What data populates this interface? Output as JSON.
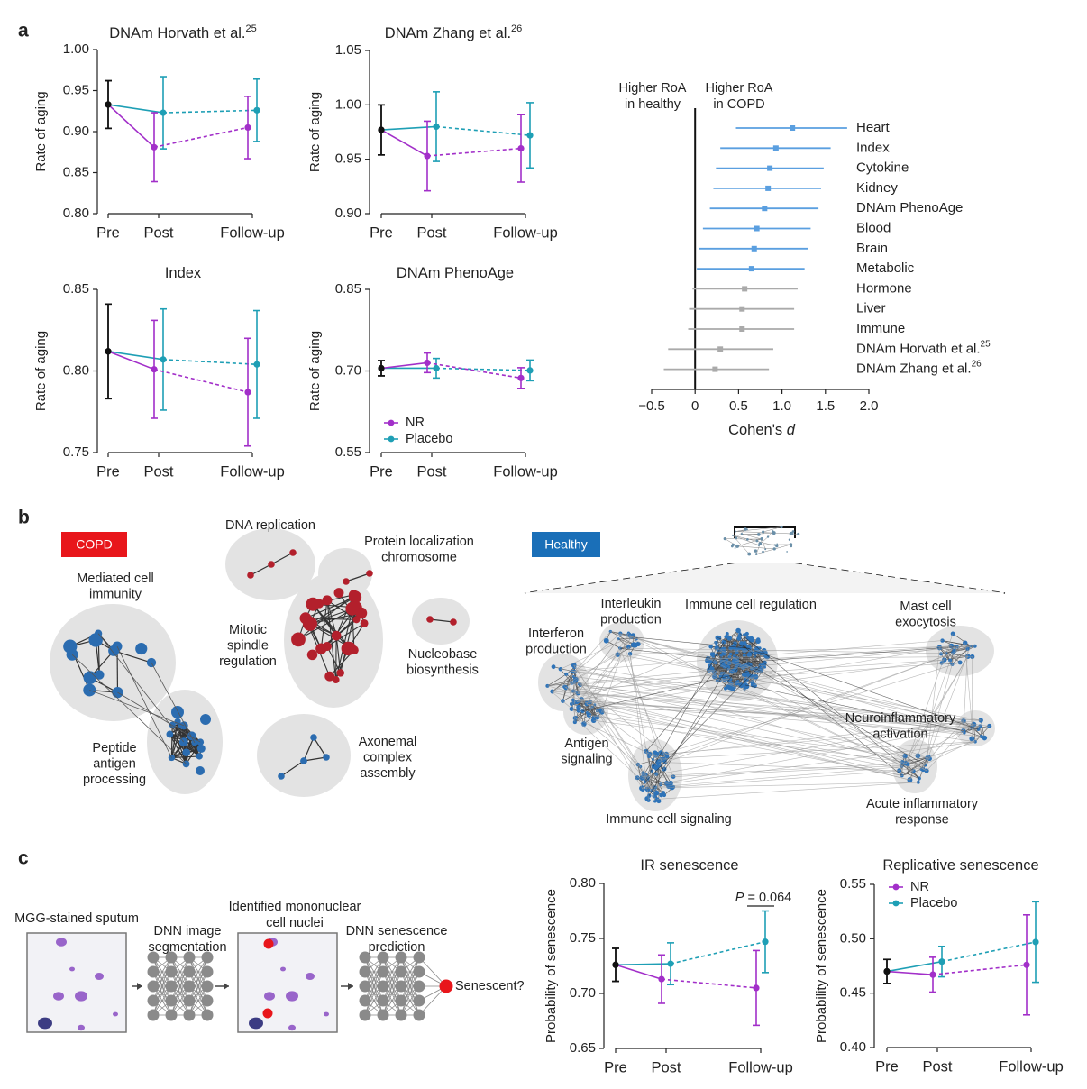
{
  "panel_labels": [
    "a",
    "b",
    "c"
  ],
  "chart_data": [
    {
      "type": "line",
      "title": "DNAm Horvath et al.",
      "title_superscript": "25",
      "ylabel": "Rate of aging",
      "categories": [
        "Pre",
        "Post",
        "Follow-up"
      ],
      "baseline_color": "#111111",
      "segment_styles": [
        "solid",
        "dashed"
      ],
      "ylim": [
        0.8,
        1.0
      ],
      "yticks": [
        {
          "value": 0.8,
          "label": "0.80"
        },
        {
          "value": 0.85,
          "label": "0.85"
        },
        {
          "value": 0.9,
          "label": "0.90"
        },
        {
          "value": 0.95,
          "label": "0.95"
        },
        {
          "value": 1.0,
          "label": "1.00"
        }
      ],
      "series": [
        {
          "color": "#a22fc9",
          "values": [
            0.933,
            0.881,
            0.905
          ],
          "errors": [
            0.029,
            0.042,
            0.038
          ]
        },
        {
          "color": "#1e9fb5",
          "values": [
            0.933,
            0.923,
            0.926
          ],
          "errors": [
            0.029,
            0.044,
            0.038
          ]
        }
      ]
    },
    {
      "type": "line",
      "title": "DNAm Zhang et al.",
      "title_superscript": "26",
      "ylabel": "Rate of aging",
      "categories": [
        "Pre",
        "Post",
        "Follow-up"
      ],
      "baseline_color": "#111111",
      "segment_styles": [
        "solid",
        "dashed"
      ],
      "ylim": [
        0.9,
        1.05
      ],
      "yticks": [
        {
          "value": 0.9,
          "label": "0.90"
        },
        {
          "value": 0.95,
          "label": "0.95"
        },
        {
          "value": 1.0,
          "label": "1.00"
        },
        {
          "value": 1.05,
          "label": "1.05"
        }
      ],
      "series": [
        {
          "color": "#a22fc9",
          "values": [
            0.977,
            0.953,
            0.96
          ],
          "errors": [
            0.023,
            0.032,
            0.031
          ]
        },
        {
          "color": "#1e9fb5",
          "values": [
            0.977,
            0.98,
            0.972
          ],
          "errors": [
            0.023,
            0.032,
            0.03
          ]
        }
      ]
    },
    {
      "type": "line",
      "title": "Index",
      "ylabel": "Rate of aging",
      "categories": [
        "Pre",
        "Post",
        "Follow-up"
      ],
      "baseline_color": "#111111",
      "segment_styles": [
        "solid",
        "dashed"
      ],
      "ylim": [
        0.75,
        0.85
      ],
      "yticks": [
        {
          "value": 0.75,
          "label": "0.75"
        },
        {
          "value": 0.8,
          "label": "0.80"
        },
        {
          "value": 0.85,
          "label": "0.85"
        }
      ],
      "series": [
        {
          "color": "#a22fc9",
          "values": [
            0.812,
            0.801,
            0.787
          ],
          "errors": [
            0.029,
            0.03,
            0.033
          ]
        },
        {
          "color": "#1e9fb5",
          "values": [
            0.812,
            0.807,
            0.804
          ],
          "errors": [
            0.029,
            0.031,
            0.033
          ]
        }
      ]
    },
    {
      "type": "line",
      "title": "DNAm PhenoAge",
      "ylabel": "Rate of aging",
      "categories": [
        "Pre",
        "Post",
        "Follow-up"
      ],
      "baseline_color": "#111111",
      "segment_styles": [
        "solid",
        "dashed"
      ],
      "ylim": [
        0.55,
        0.85
      ],
      "legend": "lower left",
      "yticks": [
        {
          "value": 0.55,
          "label": "0.55"
        },
        {
          "value": 0.7,
          "label": "0.70"
        },
        {
          "value": 0.85,
          "label": "0.85"
        }
      ],
      "series": [
        {
          "name": "NR",
          "color": "#a22fc9",
          "values": [
            0.705,
            0.715,
            0.687
          ],
          "errors": [
            0.014,
            0.018,
            0.019
          ]
        },
        {
          "name": "Placebo",
          "color": "#1e9fb5",
          "values": [
            0.705,
            0.705,
            0.701
          ],
          "errors": [
            0.014,
            0.018,
            0.019
          ]
        }
      ]
    },
    {
      "type": "forest",
      "xlabel": "Cohen's ",
      "xlabel_italic": "d",
      "annotations": [
        [
          "Higher RoA",
          "in healthy"
        ],
        [
          "Higher RoA",
          "in COPD"
        ]
      ],
      "categories": [
        "Heart",
        "Index",
        "Cytokine",
        "Kidney",
        "DNAm PhenoAge",
        "Blood",
        "Brain",
        "Metabolic",
        "Hormone",
        "Liver",
        "Immune",
        "DNAm Horvath et al.",
        "DNAm Zhang et al."
      ],
      "category_superscripts": {
        "11": "25",
        "12": "26"
      },
      "values": [
        1.12,
        0.93,
        0.86,
        0.84,
        0.8,
        0.71,
        0.68,
        0.65,
        0.57,
        0.54,
        0.54,
        0.29,
        0.23
      ],
      "lower": [
        0.47,
        0.29,
        0.24,
        0.21,
        0.17,
        0.09,
        0.05,
        0.02,
        -0.03,
        -0.07,
        -0.08,
        -0.31,
        -0.36
      ],
      "upper": [
        1.75,
        1.56,
        1.48,
        1.45,
        1.42,
        1.33,
        1.3,
        1.26,
        1.18,
        1.14,
        1.14,
        0.9,
        0.85
      ],
      "colors": [
        "#5a9fe0",
        "#5a9fe0",
        "#5a9fe0",
        "#5a9fe0",
        "#5a9fe0",
        "#5a9fe0",
        "#5a9fe0",
        "#5a9fe0",
        "#aaaaaa",
        "#aaaaaa",
        "#aaaaaa",
        "#aaaaaa",
        "#aaaaaa"
      ],
      "xlim": [
        -0.5,
        2.0
      ],
      "xticks": [
        {
          "value": -0.5,
          "label": "−0.5"
        },
        0,
        0.5,
        {
          "value": 1.0,
          "label": "1.0"
        },
        1.5,
        {
          "value": 2.0,
          "label": "2.0"
        }
      ]
    },
    {
      "type": "line",
      "title": "IR senescence",
      "ylabel": "Probability of senescence",
      "categories": [
        "Pre",
        "Post",
        "Follow-up"
      ],
      "baseline_color": "#111111",
      "segment_styles": [
        "solid",
        "dashed"
      ],
      "annotation_italic": "P",
      "annotation": " = 0.064",
      "ylim": [
        0.65,
        0.8
      ],
      "yticks": [
        {
          "value": 0.65,
          "label": "0.65"
        },
        {
          "value": 0.7,
          "label": "0.70"
        },
        {
          "value": 0.75,
          "label": "0.75"
        },
        {
          "value": 0.8,
          "label": "0.80"
        }
      ],
      "series": [
        {
          "color": "#a22fc9",
          "values": [
            0.726,
            0.713,
            0.705
          ],
          "errors": [
            0.015,
            0.022,
            0.034
          ]
        },
        {
          "color": "#1e9fb5",
          "values": [
            0.726,
            0.727,
            0.747
          ],
          "errors": [
            0.015,
            0.019,
            0.028
          ]
        }
      ]
    },
    {
      "type": "line",
      "title": "Replicative senescence",
      "ylabel": "Probability of senescence",
      "categories": [
        "Pre",
        "Post",
        "Follow-up"
      ],
      "baseline_color": "#111111",
      "segment_styles": [
        "solid",
        "dashed"
      ],
      "ylim": [
        0.4,
        0.55
      ],
      "legend": "upper left",
      "yticks": [
        {
          "value": 0.4,
          "label": "0.40"
        },
        {
          "value": 0.45,
          "label": "0.45"
        },
        {
          "value": 0.5,
          "label": "0.50"
        },
        {
          "value": 0.55,
          "label": "0.55"
        }
      ],
      "series": [
        {
          "name": "NR",
          "color": "#a22fc9",
          "values": [
            0.47,
            0.467,
            0.476
          ],
          "errors": [
            0.011,
            0.016,
            0.046
          ]
        },
        {
          "name": "Placebo",
          "color": "#1e9fb5",
          "values": [
            0.47,
            0.479,
            0.497
          ],
          "errors": [
            0.011,
            0.014,
            0.037
          ]
        }
      ]
    }
  ],
  "panel_b": {
    "copd": {
      "label": "COPD",
      "modules": [
        [
          "Mediated cell",
          "immunity"
        ],
        [
          "DNA replication"
        ],
        [
          "Protein localization",
          "chromosome"
        ],
        [
          "Mitotic",
          "spindle",
          "regulation"
        ],
        [
          "Nucleobase",
          "biosynthesis"
        ],
        [
          "Peptide",
          "antigen",
          "processing"
        ],
        [
          "Axonemal",
          "complex",
          "assembly"
        ]
      ]
    },
    "healthy": {
      "label": "Healthy",
      "modules": [
        [
          "Interleukin",
          "production"
        ],
        [
          "Immune cell regulation"
        ],
        [
          "Mast cell",
          "exocytosis"
        ],
        [
          "Interferon",
          "production"
        ],
        [
          "Antigen",
          "signaling"
        ],
        [
          "Neuroinflammatory",
          "activation"
        ],
        [
          "Immune cell signaling"
        ],
        [
          "Acute inflammatory",
          "response"
        ]
      ]
    }
  },
  "panel_c": {
    "steps": [
      [
        "MGG-stained sputum"
      ],
      [
        "DNN image",
        "segmentation"
      ],
      [
        "Identified mononuclear",
        "cell nuclei"
      ],
      [
        "DNN senescence",
        "prediction"
      ],
      [
        "Senescent?"
      ]
    ]
  }
}
